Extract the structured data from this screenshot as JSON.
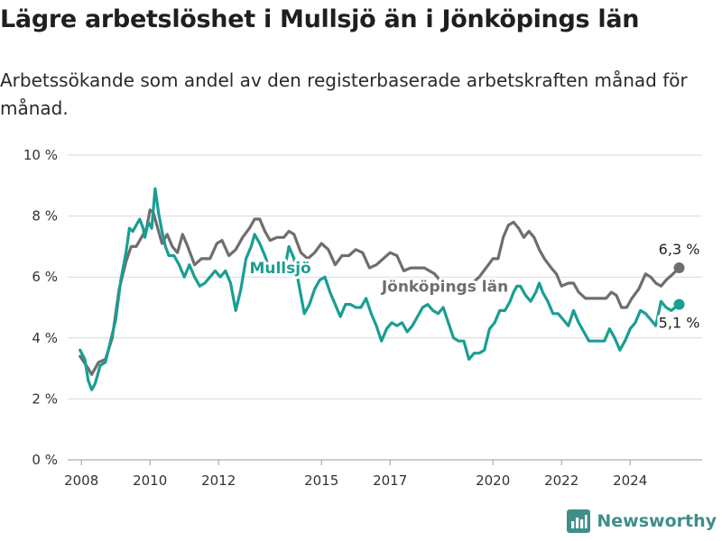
{
  "page": {
    "title": "Lägre arbetslöshet i Mullsjö än i Jönköpings län",
    "subtitle": "Arbetssökande som andel av den registerbaserade arbetskraften månad för månad.",
    "brand": "Newsworthy"
  },
  "colors": {
    "mullsjo": "#1a9e93",
    "lan": "#6e6e6e",
    "grid": "#d9d9d9",
    "axis_text": "#333333",
    "brand": "#3f8f89"
  },
  "chart_data": {
    "type": "line",
    "title": "Lägre arbetslöshet i Mullsjö än i Jönköpings län",
    "subtitle": "Arbetssökande som andel av den registerbaserade arbetskraften månad för månad.",
    "xlabel": "",
    "ylabel": "",
    "x_unit": "year (decimal)",
    "xlim": [
      2007.6,
      2026.1
    ],
    "ylim": [
      0,
      10
    ],
    "y_ticks": [
      0,
      2,
      4,
      6,
      8,
      10
    ],
    "y_tick_labels": [
      "0 %",
      "2 %",
      "4 %",
      "6 %",
      "8 %",
      "10 %"
    ],
    "x_ticks": [
      2008,
      2010,
      2012,
      2015,
      2017,
      2020,
      2022,
      2024
    ],
    "x_tick_labels": [
      "2008",
      "2010",
      "2012",
      "2015",
      "2017",
      "2020",
      "2022",
      "2024"
    ],
    "grid": true,
    "legend": "inline labels",
    "series": [
      {
        "name": "Jönköpings län",
        "color": "#6e6e6e",
        "label_text": "Jönköpings län",
        "end_label": "6,3 %",
        "points": [
          [
            2007.96,
            3.4
          ],
          [
            2008.2,
            3.0
          ],
          [
            2008.3,
            2.8
          ],
          [
            2008.5,
            3.2
          ],
          [
            2008.7,
            3.3
          ],
          [
            2008.9,
            4.0
          ],
          [
            2009.1,
            5.6
          ],
          [
            2009.3,
            6.5
          ],
          [
            2009.45,
            7.0
          ],
          [
            2009.6,
            7.0
          ],
          [
            2009.75,
            7.3
          ],
          [
            2009.9,
            7.6
          ],
          [
            2010.0,
            8.2
          ],
          [
            2010.1,
            8.1
          ],
          [
            2010.2,
            7.7
          ],
          [
            2010.35,
            7.1
          ],
          [
            2010.5,
            7.4
          ],
          [
            2010.65,
            7.0
          ],
          [
            2010.8,
            6.8
          ],
          [
            2010.95,
            7.4
          ],
          [
            2011.1,
            7.0
          ],
          [
            2011.3,
            6.4
          ],
          [
            2011.5,
            6.6
          ],
          [
            2011.75,
            6.6
          ],
          [
            2011.95,
            7.1
          ],
          [
            2012.1,
            7.2
          ],
          [
            2012.3,
            6.7
          ],
          [
            2012.5,
            6.9
          ],
          [
            2012.7,
            7.3
          ],
          [
            2012.9,
            7.6
          ],
          [
            2013.05,
            7.9
          ],
          [
            2013.2,
            7.9
          ],
          [
            2013.35,
            7.5
          ],
          [
            2013.5,
            7.2
          ],
          [
            2013.7,
            7.3
          ],
          [
            2013.9,
            7.3
          ],
          [
            2014.05,
            7.5
          ],
          [
            2014.2,
            7.4
          ],
          [
            2014.4,
            6.8
          ],
          [
            2014.6,
            6.6
          ],
          [
            2014.8,
            6.8
          ],
          [
            2015.0,
            7.1
          ],
          [
            2015.2,
            6.9
          ],
          [
            2015.4,
            6.4
          ],
          [
            2015.6,
            6.7
          ],
          [
            2015.8,
            6.7
          ],
          [
            2016.0,
            6.9
          ],
          [
            2016.2,
            6.8
          ],
          [
            2016.4,
            6.3
          ],
          [
            2016.6,
            6.4
          ],
          [
            2016.8,
            6.6
          ],
          [
            2017.0,
            6.8
          ],
          [
            2017.2,
            6.7
          ],
          [
            2017.4,
            6.2
          ],
          [
            2017.6,
            6.3
          ],
          [
            2017.8,
            6.3
          ],
          [
            2018.0,
            6.3
          ],
          [
            2018.3,
            6.1
          ],
          [
            2018.6,
            5.7
          ],
          [
            2018.9,
            5.6
          ],
          [
            2019.2,
            5.8
          ],
          [
            2019.4,
            5.8
          ],
          [
            2019.6,
            6.0
          ],
          [
            2019.8,
            6.3
          ],
          [
            2020.0,
            6.6
          ],
          [
            2020.15,
            6.6
          ],
          [
            2020.3,
            7.3
          ],
          [
            2020.45,
            7.7
          ],
          [
            2020.6,
            7.8
          ],
          [
            2020.75,
            7.6
          ],
          [
            2020.9,
            7.3
          ],
          [
            2021.05,
            7.5
          ],
          [
            2021.2,
            7.3
          ],
          [
            2021.35,
            6.9
          ],
          [
            2021.5,
            6.6
          ],
          [
            2021.7,
            6.3
          ],
          [
            2021.85,
            6.1
          ],
          [
            2022.0,
            5.7
          ],
          [
            2022.2,
            5.8
          ],
          [
            2022.35,
            5.8
          ],
          [
            2022.5,
            5.5
          ],
          [
            2022.7,
            5.3
          ],
          [
            2022.9,
            5.3
          ],
          [
            2023.1,
            5.3
          ],
          [
            2023.3,
            5.3
          ],
          [
            2023.45,
            5.5
          ],
          [
            2023.6,
            5.4
          ],
          [
            2023.75,
            5.0
          ],
          [
            2023.9,
            5.0
          ],
          [
            2024.05,
            5.3
          ],
          [
            2024.25,
            5.6
          ],
          [
            2024.45,
            6.1
          ],
          [
            2024.6,
            6.0
          ],
          [
            2024.75,
            5.8
          ],
          [
            2024.9,
            5.7
          ],
          [
            2025.05,
            5.9
          ],
          [
            2025.25,
            6.1
          ],
          [
            2025.43,
            6.3
          ]
        ]
      },
      {
        "name": "Mullsjö",
        "color": "#1a9e93",
        "label_text": "Mullsjö",
        "end_label": "5,1 %",
        "points": [
          [
            2007.96,
            3.6
          ],
          [
            2008.1,
            3.3
          ],
          [
            2008.2,
            2.6
          ],
          [
            2008.3,
            2.3
          ],
          [
            2008.4,
            2.5
          ],
          [
            2008.55,
            3.1
          ],
          [
            2008.7,
            3.2
          ],
          [
            2008.85,
            3.9
          ],
          [
            2009.0,
            4.6
          ],
          [
            2009.15,
            5.9
          ],
          [
            2009.3,
            6.8
          ],
          [
            2009.4,
            7.6
          ],
          [
            2009.5,
            7.5
          ],
          [
            2009.6,
            7.7
          ],
          [
            2009.7,
            7.9
          ],
          [
            2009.8,
            7.6
          ],
          [
            2009.85,
            7.3
          ],
          [
            2009.95,
            7.8
          ],
          [
            2010.05,
            7.6
          ],
          [
            2010.15,
            8.9
          ],
          [
            2010.25,
            8.1
          ],
          [
            2010.35,
            7.5
          ],
          [
            2010.45,
            7.0
          ],
          [
            2010.55,
            6.7
          ],
          [
            2010.7,
            6.7
          ],
          [
            2010.85,
            6.4
          ],
          [
            2011.0,
            6.0
          ],
          [
            2011.15,
            6.4
          ],
          [
            2011.3,
            6.0
          ],
          [
            2011.45,
            5.7
          ],
          [
            2011.6,
            5.8
          ],
          [
            2011.75,
            6.0
          ],
          [
            2011.9,
            6.2
          ],
          [
            2012.05,
            6.0
          ],
          [
            2012.2,
            6.2
          ],
          [
            2012.35,
            5.8
          ],
          [
            2012.5,
            4.9
          ],
          [
            2012.65,
            5.6
          ],
          [
            2012.8,
            6.6
          ],
          [
            2012.95,
            7.0
          ],
          [
            2013.05,
            7.4
          ],
          [
            2013.2,
            7.1
          ],
          [
            2013.35,
            6.7
          ],
          [
            2013.5,
            6.2
          ],
          [
            2013.65,
            6.3
          ],
          [
            2013.8,
            6.4
          ],
          [
            2013.95,
            6.4
          ],
          [
            2014.05,
            7.0
          ],
          [
            2014.2,
            6.6
          ],
          [
            2014.35,
            5.7
          ],
          [
            2014.5,
            4.8
          ],
          [
            2014.65,
            5.1
          ],
          [
            2014.8,
            5.6
          ],
          [
            2014.95,
            5.9
          ],
          [
            2015.1,
            6.0
          ],
          [
            2015.25,
            5.5
          ],
          [
            2015.4,
            5.1
          ],
          [
            2015.55,
            4.7
          ],
          [
            2015.7,
            5.1
          ],
          [
            2015.85,
            5.1
          ],
          [
            2016.0,
            5.0
          ],
          [
            2016.15,
            5.0
          ],
          [
            2016.3,
            5.3
          ],
          [
            2016.45,
            4.8
          ],
          [
            2016.6,
            4.4
          ],
          [
            2016.75,
            3.9
          ],
          [
            2016.9,
            4.3
          ],
          [
            2017.05,
            4.5
          ],
          [
            2017.2,
            4.4
          ],
          [
            2017.35,
            4.5
          ],
          [
            2017.5,
            4.2
          ],
          [
            2017.65,
            4.4
          ],
          [
            2017.8,
            4.7
          ],
          [
            2017.95,
            5.0
          ],
          [
            2018.1,
            5.1
          ],
          [
            2018.25,
            4.9
          ],
          [
            2018.4,
            4.8
          ],
          [
            2018.55,
            5.0
          ],
          [
            2018.7,
            4.5
          ],
          [
            2018.85,
            4.0
          ],
          [
            2019.0,
            3.9
          ],
          [
            2019.15,
            3.9
          ],
          [
            2019.3,
            3.3
          ],
          [
            2019.45,
            3.5
          ],
          [
            2019.6,
            3.5
          ],
          [
            2019.75,
            3.6
          ],
          [
            2019.9,
            4.3
          ],
          [
            2020.05,
            4.5
          ],
          [
            2020.2,
            4.9
          ],
          [
            2020.35,
            4.9
          ],
          [
            2020.5,
            5.2
          ],
          [
            2020.6,
            5.5
          ],
          [
            2020.7,
            5.7
          ],
          [
            2020.8,
            5.7
          ],
          [
            2020.95,
            5.4
          ],
          [
            2021.1,
            5.2
          ],
          [
            2021.25,
            5.5
          ],
          [
            2021.35,
            5.8
          ],
          [
            2021.45,
            5.5
          ],
          [
            2021.6,
            5.2
          ],
          [
            2021.75,
            4.8
          ],
          [
            2021.9,
            4.8
          ],
          [
            2022.05,
            4.6
          ],
          [
            2022.2,
            4.4
          ],
          [
            2022.35,
            4.9
          ],
          [
            2022.5,
            4.5
          ],
          [
            2022.65,
            4.2
          ],
          [
            2022.8,
            3.9
          ],
          [
            2022.95,
            3.9
          ],
          [
            2023.1,
            3.9
          ],
          [
            2023.25,
            3.9
          ],
          [
            2023.4,
            4.3
          ],
          [
            2023.55,
            4.0
          ],
          [
            2023.7,
            3.6
          ],
          [
            2023.85,
            3.9
          ],
          [
            2024.0,
            4.3
          ],
          [
            2024.15,
            4.5
          ],
          [
            2024.3,
            4.9
          ],
          [
            2024.45,
            4.8
          ],
          [
            2024.6,
            4.6
          ],
          [
            2024.75,
            4.4
          ],
          [
            2024.9,
            5.2
          ],
          [
            2025.05,
            5.0
          ],
          [
            2025.2,
            4.9
          ],
          [
            2025.43,
            5.1
          ]
        ]
      }
    ]
  }
}
